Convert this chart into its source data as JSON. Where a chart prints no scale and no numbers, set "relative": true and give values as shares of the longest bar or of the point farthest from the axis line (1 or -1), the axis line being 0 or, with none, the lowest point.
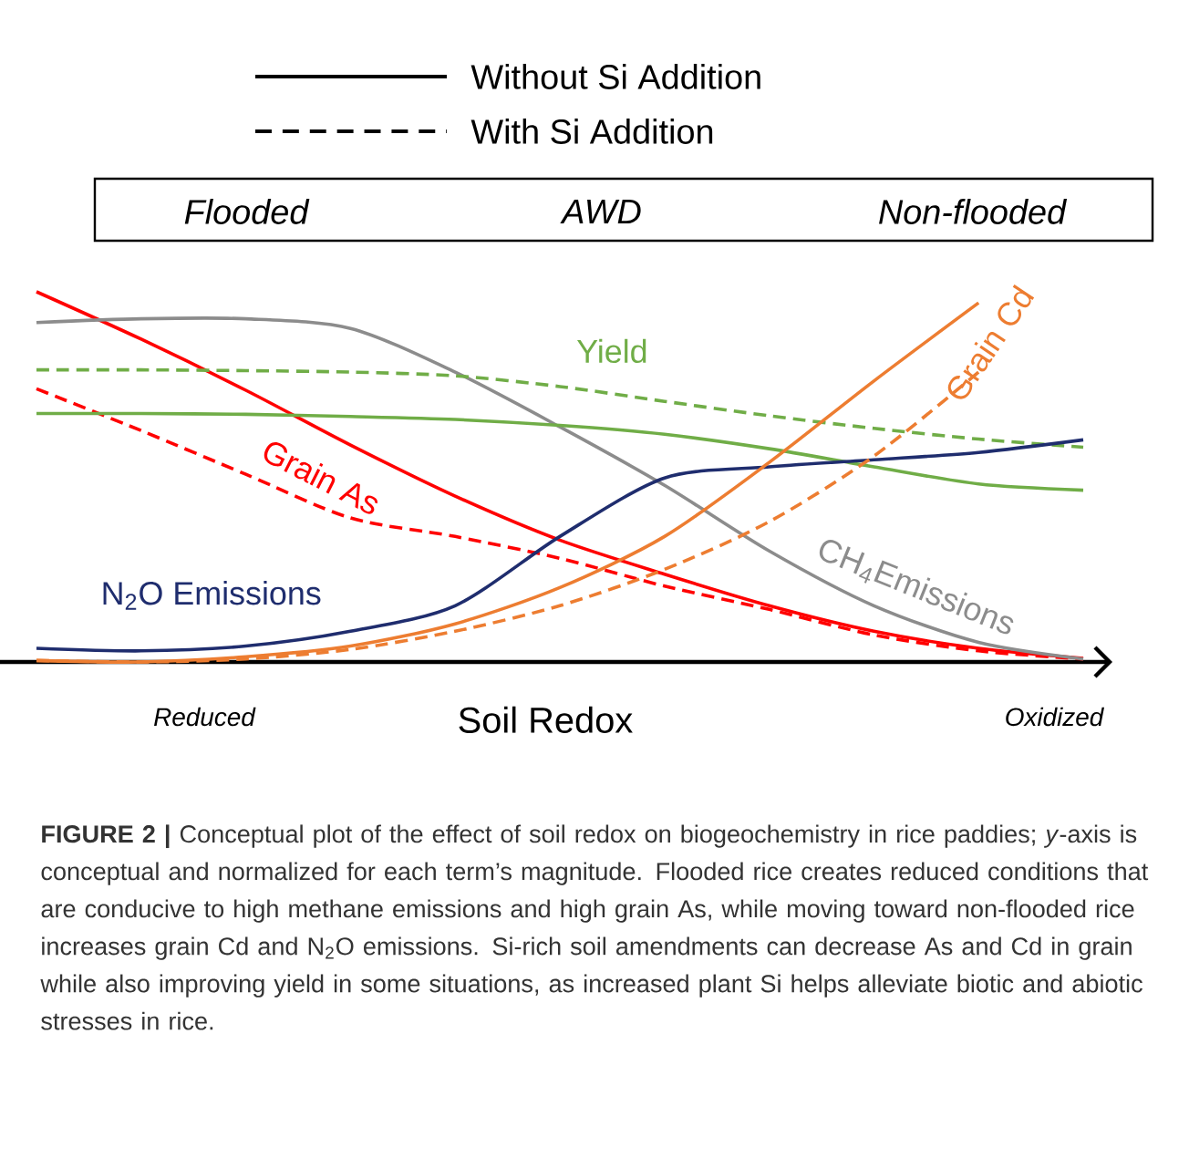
{
  "chart_data": {
    "type": "line",
    "relative": true,
    "xlabel": "Soil Redox",
    "categories": [
      null,
      null,
      null,
      null,
      null,
      null,
      null,
      null,
      null,
      null,
      null
    ],
    "series": [
      {
        "name": "Grain As",
        "color": "#ff0000",
        "line_style": "solid",
        "values": [
          1.0,
          0.872,
          0.734,
          0.586,
          0.448,
          0.329,
          0.237,
          0.152,
          0.083,
          0.037,
          0.01
        ]
      },
      {
        "color": "#ff0000",
        "line_style": "dashed",
        "values": [
          0.738,
          0.625,
          0.507,
          0.389,
          0.339,
          0.28,
          0.205,
          0.142,
          0.073,
          0.03,
          0.008
        ]
      },
      {
        "name": "CH$_{4}$Emissions",
        "color": "#8c8c8c",
        "line_style": "solid",
        "values": [
          0.917,
          0.927,
          0.927,
          0.901,
          0.783,
          0.635,
          0.477,
          0.3,
          0.152,
          0.053,
          0.008
        ]
      },
      {
        "name": "Yield",
        "color": "#70ad47",
        "line_style": "solid",
        "values": [
          0.671,
          0.671,
          0.669,
          0.663,
          0.655,
          0.639,
          0.615,
          0.576,
          0.527,
          0.481,
          0.464
        ]
      },
      {
        "color": "#70ad47",
        "line_style": "dashed",
        "values": [
          0.789,
          0.789,
          0.787,
          0.783,
          0.773,
          0.744,
          0.704,
          0.665,
          0.631,
          0.602,
          0.58
        ]
      },
      {
        "name": "N$_{2}$O Emissions",
        "color": "#1f2d6e",
        "line_style": "solid",
        "values": [
          0.037,
          0.03,
          0.043,
          0.083,
          0.152,
          0.339,
          0.497,
          0.527,
          0.546,
          0.566,
          0.6
        ]
      },
      {
        "name": "Grain Cd",
        "color": "#ed7d31",
        "line_style": "solid",
        "values": [
          0.004,
          0.0,
          0.014,
          0.043,
          0.103,
          0.201,
          0.339,
          0.539,
          0.759,
          0.97,
          null
        ]
      },
      {
        "color": "#ed7d31",
        "line_style": "dashed",
        "values": [
          0.004,
          0.0,
          0.008,
          0.034,
          0.083,
          0.152,
          0.25,
          0.379,
          0.556,
          0.783,
          null
        ]
      }
    ],
    "annotations": [
      "Without Si Addition",
      "With Si Addition",
      "Flooded",
      "AWD",
      "Non-flooded",
      "Reduced",
      "Oxidized",
      "**FIGURE 2 |** Conceptual plot of the effect of soil redox on biogeochemistry in rice paddies; *y*-axis is conceptual and normalized for each term’s magnitude. Flooded rice creates reduced conditions that are conducive to high methane emissions and high grain As, while moving toward non-flooded rice increases grain Cd and N$_{2}$O emissions. Si-rich soil amendments can decrease As and Cd in grain while also improving yield in some situations, as increased plant Si helps alleviate biotic and abiotic stresses in rice."
    ]
  }
}
